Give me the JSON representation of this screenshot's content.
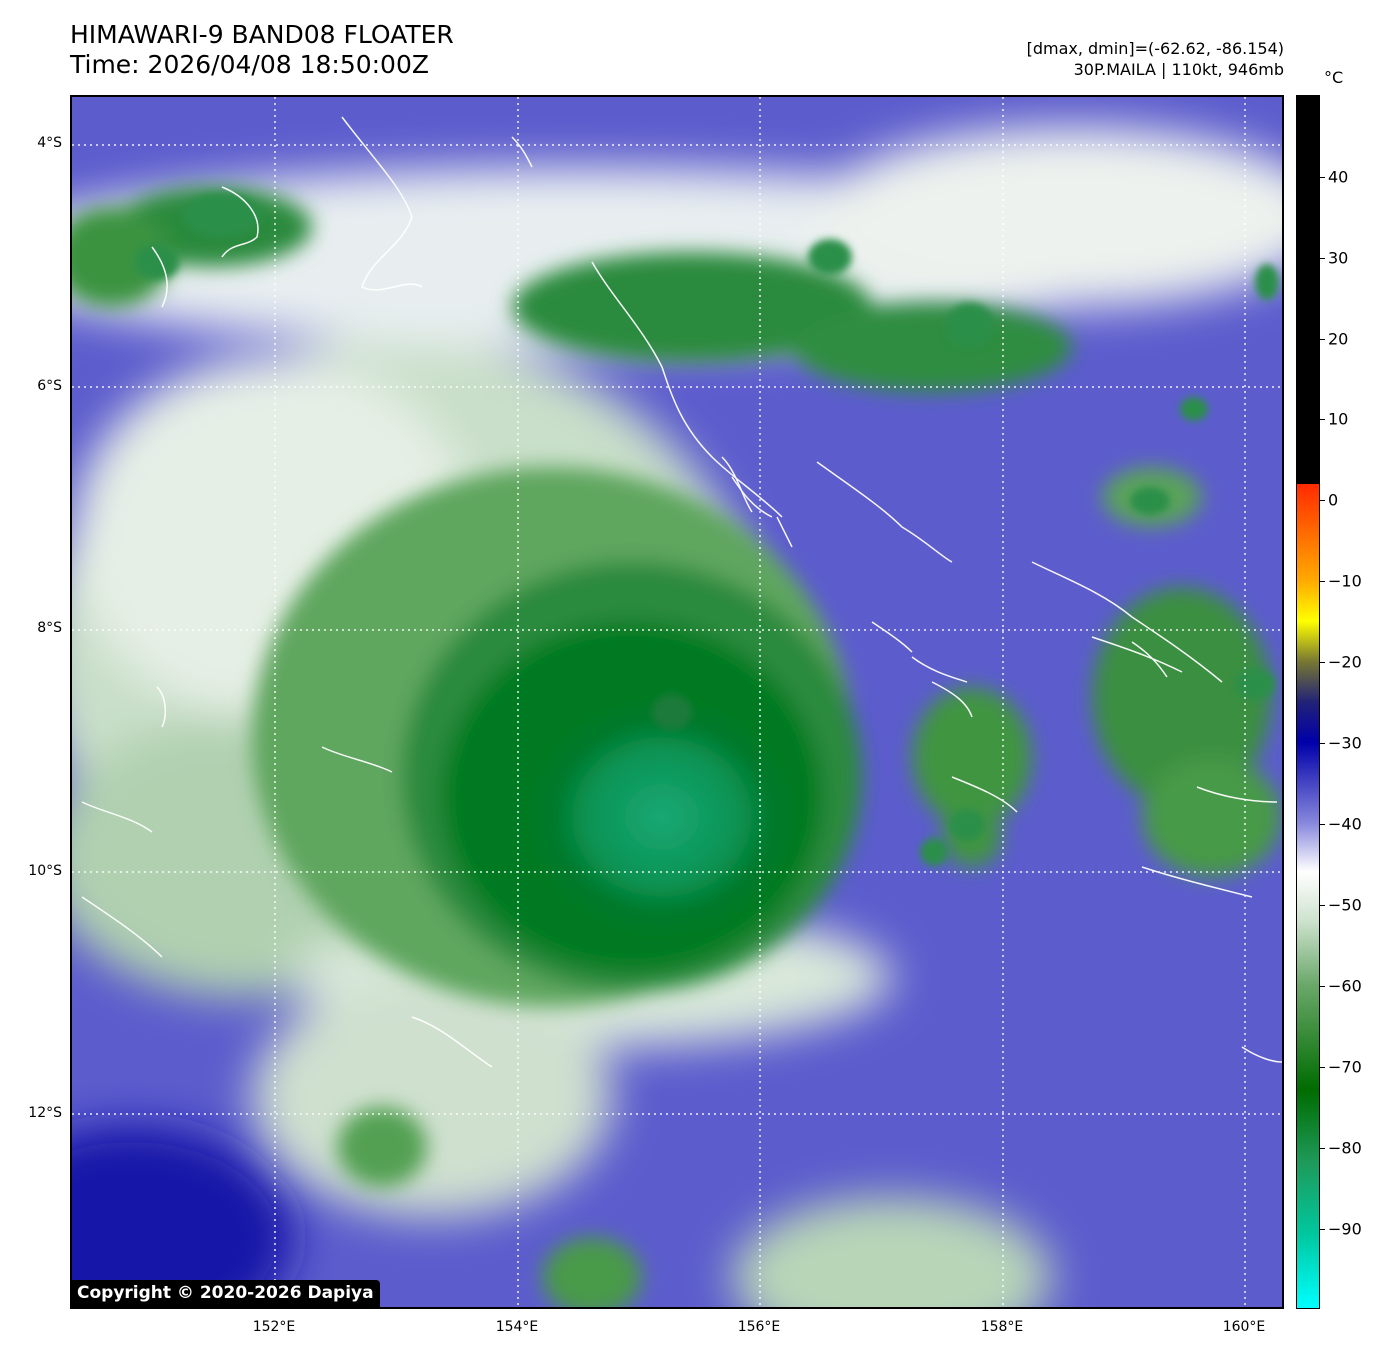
{
  "header": {
    "title_line1": "HIMAWARI-9 BAND08 FLOATER",
    "title_line2": "Time: 2026/04/08 18:50:00Z",
    "range_text": "[dmax, dmin]=(-62.62, -86.154)",
    "storm_text": "30P.MAILA | 110kt, 946mb"
  },
  "map": {
    "latitude_labels": [
      "4°S",
      "6°S",
      "8°S",
      "10°S",
      "12°S"
    ],
    "longitude_labels": [
      "152°E",
      "154°E",
      "156°E",
      "158°E",
      "160°E"
    ],
    "copyright": "Copyright © 2020-2026 Dapiya"
  },
  "colorbar": {
    "unit": "°C",
    "tick_labels": [
      "40",
      "30",
      "20",
      "10",
      "0",
      "−10",
      "−20",
      "−30",
      "−40",
      "−50",
      "−60",
      "−70",
      "−80",
      "−90"
    ],
    "stops": [
      {
        "value": 50,
        "color": "#000000"
      },
      {
        "value": 2,
        "color": "#000000"
      },
      {
        "value": 2,
        "color": "#ff2a00"
      },
      {
        "value": -10,
        "color": "#ffaa00"
      },
      {
        "value": -15,
        "color": "#ffff00"
      },
      {
        "value": -20,
        "color": "#777733"
      },
      {
        "value": -25,
        "color": "#222277"
      },
      {
        "value": -30,
        "color": "#0000aa"
      },
      {
        "value": -40,
        "color": "#8888dd"
      },
      {
        "value": -46,
        "color": "#ffffff"
      },
      {
        "value": -52,
        "color": "#cfe3cf"
      },
      {
        "value": -60,
        "color": "#6aa86a"
      },
      {
        "value": -73,
        "color": "#006c00"
      },
      {
        "value": -82,
        "color": "#1e9a5a"
      },
      {
        "value": -91,
        "color": "#00c8a0"
      },
      {
        "value": -100,
        "color": "#00ffff"
      }
    ]
  }
}
